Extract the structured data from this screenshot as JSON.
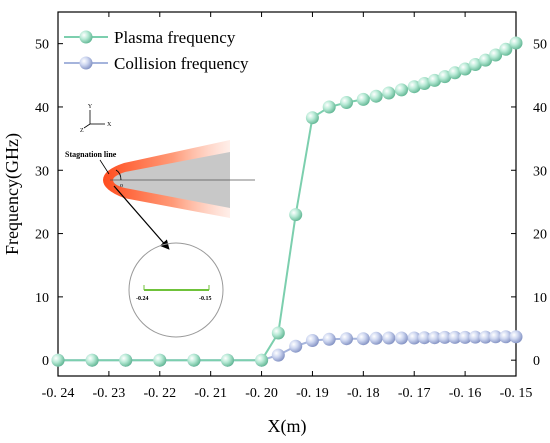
{
  "chart_data": {
    "type": "line",
    "xlabel": "X(m)",
    "ylabel": "Frequency(GHz)",
    "xlim": [
      -0.24,
      -0.15
    ],
    "ylim": [
      -2.5,
      55
    ],
    "xticks": [
      -0.24,
      -0.23,
      -0.22,
      -0.21,
      -0.2,
      -0.19,
      -0.18,
      -0.17,
      -0.16,
      -0.15
    ],
    "xtick_labels": [
      "-0. 24",
      "-0. 23",
      "-0. 22",
      "-0. 21",
      "-0. 20",
      "-0. 19",
      "-0. 18",
      "-0. 17",
      "-0. 16",
      "-0. 15"
    ],
    "yticks": [
      0,
      10,
      20,
      30,
      40,
      50
    ],
    "ytick_labels": [
      "0",
      "10",
      "20",
      "30",
      "40",
      "50"
    ],
    "mirror_right_axis": true,
    "grid": false,
    "legend_position": "top-left",
    "series": [
      {
        "name": "Plasma frequency",
        "color": "#7ccfae",
        "marker": "sphere",
        "x": [
          -0.24,
          -0.2333,
          -0.2267,
          -0.22,
          -0.2133,
          -0.2067,
          -0.2,
          -0.1967,
          -0.1933,
          -0.19,
          -0.1867,
          -0.1833,
          -0.18,
          -0.1775,
          -0.175,
          -0.1725,
          -0.17,
          -0.168,
          -0.166,
          -0.164,
          -0.162,
          -0.16,
          -0.158,
          -0.156,
          -0.154,
          -0.152,
          -0.15
        ],
        "y": [
          0,
          0,
          0,
          0,
          0,
          0,
          0,
          4.3,
          23,
          38.3,
          40,
          40.7,
          41.2,
          41.7,
          42.2,
          42.7,
          43.2,
          43.7,
          44.2,
          44.8,
          45.4,
          46,
          46.7,
          47.4,
          48.2,
          49.1,
          50.1
        ]
      },
      {
        "name": "Collision frequency",
        "color": "#a5b4dc",
        "marker": "sphere",
        "x": [
          -0.24,
          -0.2333,
          -0.2267,
          -0.22,
          -0.2133,
          -0.2067,
          -0.2,
          -0.1967,
          -0.1933,
          -0.19,
          -0.1867,
          -0.1833,
          -0.18,
          -0.1775,
          -0.175,
          -0.1725,
          -0.17,
          -0.168,
          -0.166,
          -0.164,
          -0.162,
          -0.16,
          -0.158,
          -0.156,
          -0.154,
          -0.152,
          -0.15
        ],
        "y": [
          0,
          0,
          0,
          0,
          0,
          0,
          0,
          0.8,
          2.2,
          3.1,
          3.3,
          3.4,
          3.4,
          3.45,
          3.5,
          3.5,
          3.5,
          3.55,
          3.55,
          3.6,
          3.6,
          3.6,
          3.65,
          3.65,
          3.7,
          3.7,
          3.7
        ]
      }
    ],
    "inset": {
      "axis_labels": [
        "Y",
        "Z",
        "X"
      ],
      "stagnation_label": "Stagnation line",
      "origin_label": "o",
      "line_start_label": "-0.24",
      "line_end_label": "-0.15",
      "flow_color": "#ff6a3d",
      "body_color": "#c8c8c8",
      "segment_color": "#6fc23a"
    }
  }
}
